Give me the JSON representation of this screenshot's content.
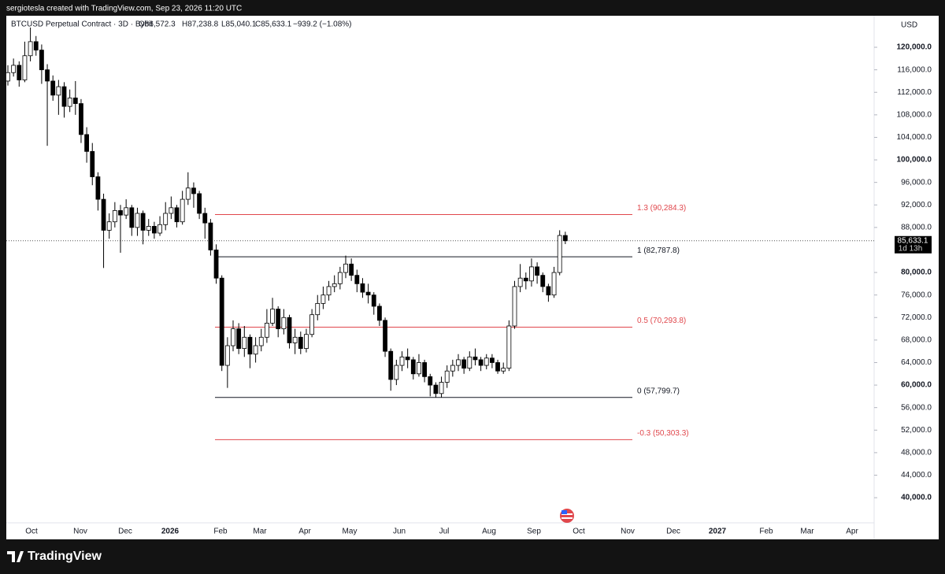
{
  "header": {
    "credit": "sergiotesla created with TradingView.com, Sep 23, 2026 11:20 UTC",
    "symbol": "BTCUSD Perpetual Contract · 3D · Bybit",
    "open": "O86,572.3",
    "high": "H87,238.8",
    "low": "L85,040.1",
    "close": "C85,633.1",
    "change": "−939.2 (−1.08%)"
  },
  "footer": {
    "brand": "TradingView"
  },
  "chart_data": {
    "type": "candlestick",
    "axis_title": "USD",
    "ylim": [
      32600,
      125600
    ],
    "yticks": [
      {
        "value": 40000,
        "label": "40,000.0"
      },
      {
        "value": 44000,
        "label": "44,000.0"
      },
      {
        "value": 48000,
        "label": "48,000.0"
      },
      {
        "value": 52000,
        "label": "52,000.0"
      },
      {
        "value": 56000,
        "label": "56,000.0"
      },
      {
        "value": 60000,
        "label": "60,000.0"
      },
      {
        "value": 64000,
        "label": "64,000.0"
      },
      {
        "value": 68000,
        "label": "68,000.0"
      },
      {
        "value": 72000,
        "label": "72,000.0"
      },
      {
        "value": 76000,
        "label": "76,000.0"
      },
      {
        "value": 80000,
        "label": "80,000.0"
      },
      {
        "value": 88000,
        "label": "88,000.0"
      },
      {
        "value": 92000,
        "label": "92,000.0"
      },
      {
        "value": 96000,
        "label": "96,000.0"
      },
      {
        "value": 100000,
        "label": "100,000.0"
      },
      {
        "value": 104000,
        "label": "104,000.0"
      },
      {
        "value": 108000,
        "label": "108,000.0"
      },
      {
        "value": 112000,
        "label": "112,000.0"
      },
      {
        "value": 116000,
        "label": "116,000.0"
      },
      {
        "value": 120000,
        "label": "120,000.0"
      }
    ],
    "x_labels": [
      "Oct",
      "Nov",
      "Dec",
      "2026",
      "Feb",
      "Mar",
      "Apr",
      "May",
      "Jun",
      "Jul",
      "Aug",
      "Sep",
      "Oct",
      "Nov",
      "Dec",
      "2027",
      "Feb",
      "Mar",
      "Apr"
    ],
    "up_color": "#ffffff",
    "down_color": "#000000",
    "ohlc": [
      [
        114000,
        116800,
        113200,
        115500
      ],
      [
        115500,
        118000,
        114800,
        116800
      ],
      [
        116800,
        117500,
        113000,
        114200
      ],
      [
        114200,
        121000,
        113800,
        118500
      ],
      [
        118500,
        123500,
        117500,
        121000
      ],
      [
        121000,
        122000,
        118500,
        119500
      ],
      [
        119500,
        120500,
        113500,
        116000
      ],
      [
        116000,
        117000,
        102500,
        114000
      ],
      [
        114000,
        115000,
        110500,
        111500
      ],
      [
        111500,
        114200,
        108000,
        113000
      ],
      [
        113000,
        113800,
        107500,
        109500
      ],
      [
        109500,
        112500,
        108500,
        111000
      ],
      [
        111000,
        114000,
        108000,
        110000
      ],
      [
        110000,
        110800,
        103000,
        104500
      ],
      [
        104500,
        105800,
        99500,
        101500
      ],
      [
        101500,
        103000,
        95500,
        97000
      ],
      [
        97000,
        97800,
        91000,
        93000
      ],
      [
        93000,
        94000,
        80800,
        87500
      ],
      [
        87500,
        90500,
        86000,
        89000
      ],
      [
        89000,
        92500,
        88000,
        91000
      ],
      [
        91000,
        92000,
        83500,
        90200
      ],
      [
        90200,
        93000,
        89500,
        91500
      ],
      [
        91500,
        92000,
        86500,
        88000
      ],
      [
        88000,
        91500,
        86500,
        90500
      ],
      [
        90500,
        91000,
        85000,
        87500
      ],
      [
        87500,
        89500,
        86500,
        88200
      ],
      [
        88200,
        89000,
        86000,
        87000
      ],
      [
        87000,
        90000,
        86500,
        88500
      ],
      [
        88500,
        92500,
        87500,
        90500
      ],
      [
        90500,
        93500,
        89500,
        91500
      ],
      [
        91500,
        92000,
        88000,
        89000
      ],
      [
        89000,
        94500,
        88500,
        93000
      ],
      [
        93000,
        97800,
        92000,
        95000
      ],
      [
        95000,
        96000,
        91500,
        94000
      ],
      [
        94000,
        94500,
        89500,
        90500
      ],
      [
        90500,
        91500,
        86000,
        88800
      ],
      [
        88800,
        89500,
        83000,
        84000
      ],
      [
        84000,
        85000,
        78000,
        79000
      ],
      [
        79000,
        79500,
        62500,
        63500
      ],
      [
        63500,
        68500,
        59500,
        67000
      ],
      [
        67000,
        71500,
        66000,
        70000
      ],
      [
        70000,
        71000,
        65500,
        66500
      ],
      [
        66500,
        70500,
        65000,
        68500
      ],
      [
        68500,
        69000,
        63000,
        65500
      ],
      [
        65500,
        68500,
        64000,
        67000
      ],
      [
        67000,
        70000,
        66000,
        68500
      ],
      [
        68500,
        73500,
        67500,
        71000
      ],
      [
        71000,
        75500,
        70500,
        73500
      ],
      [
        73500,
        74000,
        68500,
        70000
      ],
      [
        70000,
        73500,
        69000,
        72000
      ],
      [
        72000,
        72500,
        66500,
        67500
      ],
      [
        67500,
        70000,
        65500,
        68500
      ],
      [
        68500,
        69500,
        65500,
        66500
      ],
      [
        66500,
        70000,
        65800,
        69000
      ],
      [
        69000,
        73500,
        68500,
        72500
      ],
      [
        72500,
        76000,
        71500,
        74500
      ],
      [
        74500,
        77500,
        73500,
        76000
      ],
      [
        76000,
        78500,
        75000,
        77500
      ],
      [
        77500,
        79500,
        76500,
        78000
      ],
      [
        78000,
        81000,
        77000,
        80000
      ],
      [
        80000,
        83000,
        79000,
        81500
      ],
      [
        81500,
        82500,
        78500,
        79500
      ],
      [
        79500,
        80500,
        76500,
        78000
      ],
      [
        78000,
        79000,
        75500,
        76500
      ],
      [
        76500,
        78000,
        74500,
        76000
      ],
      [
        76000,
        76500,
        72500,
        74000
      ],
      [
        74000,
        74500,
        70500,
        71500
      ],
      [
        71500,
        72000,
        65000,
        66000
      ],
      [
        66000,
        66500,
        59000,
        61000
      ],
      [
        61000,
        64500,
        60000,
        63500
      ],
      [
        63500,
        66000,
        62500,
        65000
      ],
      [
        65000,
        66500,
        63000,
        64500
      ],
      [
        64500,
        65000,
        61000,
        62000
      ],
      [
        62000,
        65500,
        61500,
        64000
      ],
      [
        64000,
        64500,
        60500,
        61500
      ],
      [
        61500,
        62000,
        58000,
        60000
      ],
      [
        60000,
        60500,
        57800,
        58500
      ],
      [
        58500,
        61500,
        57800,
        60500
      ],
      [
        60500,
        63500,
        59500,
        62500
      ],
      [
        62500,
        64500,
        61500,
        63500
      ],
      [
        63500,
        65500,
        62500,
        64500
      ],
      [
        64500,
        65000,
        62000,
        63000
      ],
      [
        63000,
        66000,
        62500,
        65000
      ],
      [
        65000,
        66500,
        63500,
        64500
      ],
      [
        64500,
        65000,
        62500,
        63500
      ],
      [
        63500,
        65500,
        62800,
        64800
      ],
      [
        64800,
        65500,
        63000,
        64000
      ],
      [
        64000,
        64500,
        62000,
        62500
      ],
      [
        62500,
        64000,
        62000,
        63000
      ],
      [
        63000,
        71500,
        62500,
        70500
      ],
      [
        70500,
        78500,
        70000,
        77500
      ],
      [
        77500,
        81500,
        76500,
        79000
      ],
      [
        79000,
        80000,
        77000,
        78500
      ],
      [
        78500,
        82500,
        77500,
        81000
      ],
      [
        81000,
        81800,
        78000,
        79500
      ],
      [
        79500,
        80000,
        76500,
        77500
      ],
      [
        77500,
        78000,
        74800,
        76000
      ],
      [
        76000,
        81000,
        75500,
        80000
      ],
      [
        80000,
        87500,
        79500,
        86572.3
      ],
      [
        86572.3,
        87238.8,
        85040.1,
        85633.1
      ]
    ],
    "fib_levels": [
      {
        "label": "1.3 (90,284.3)",
        "value": 90284.3,
        "color": "#e0474c"
      },
      {
        "label": "1 (82,787.8)",
        "value": 82787.8,
        "color": "#131722"
      },
      {
        "label": "0.5 (70,293.8)",
        "value": 70293.8,
        "color": "#e0474c"
      },
      {
        "label": "0 (57,799.7)",
        "value": 57799.7,
        "color": "#131722"
      },
      {
        "label": "-0.3 (50,303.3)",
        "value": 50303.3,
        "color": "#e0474c"
      }
    ],
    "price_tag": {
      "value": 85633.1,
      "label": "85,633.1",
      "countdown": "1d 13h"
    }
  }
}
